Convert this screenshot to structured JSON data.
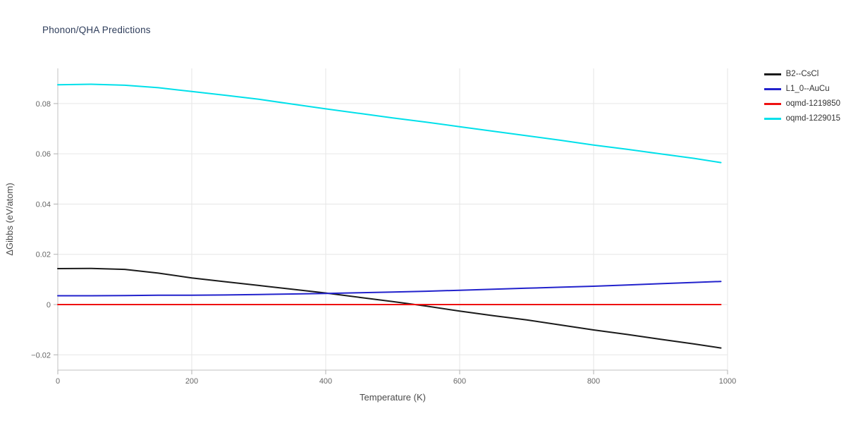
{
  "title": "Phonon/QHA Predictions",
  "chart_data": {
    "type": "line",
    "title": "Phonon/QHA Predictions",
    "xlabel": "Temperature (K)",
    "ylabel": "ΔGibbs (eV/atom)",
    "xlim": [
      0,
      1000
    ],
    "ylim": [
      -0.0261,
      0.094
    ],
    "xticks": [
      0,
      200,
      400,
      600,
      800,
      1000
    ],
    "yticks": [
      -0.02,
      0,
      0.02,
      0.04,
      0.06,
      0.08
    ],
    "grid": true,
    "legend_position": "top-right-outside",
    "x": [
      0,
      50,
      100,
      150,
      200,
      250,
      300,
      350,
      400,
      450,
      500,
      550,
      600,
      650,
      700,
      750,
      800,
      850,
      900,
      950,
      990
    ],
    "series": [
      {
        "name": "B2--CsCl",
        "color": "#1a1a1a",
        "values": [
          0.0143,
          0.0144,
          0.014,
          0.0125,
          0.0106,
          0.0091,
          0.0076,
          0.0061,
          0.0046,
          0.0029,
          0.0012,
          -0.0006,
          -0.0026,
          -0.0044,
          -0.0061,
          -0.0081,
          -0.0101,
          -0.0119,
          -0.0138,
          -0.0157,
          -0.0173
        ]
      },
      {
        "name": "L1_0--AuCu",
        "color": "#2222cc",
        "values": [
          0.0035,
          0.0035,
          0.0036,
          0.0037,
          0.0037,
          0.0038,
          0.004,
          0.0042,
          0.0044,
          0.0047,
          0.005,
          0.0053,
          0.0057,
          0.0061,
          0.0065,
          0.0069,
          0.0073,
          0.0078,
          0.0083,
          0.0088,
          0.0092
        ]
      },
      {
        "name": "oqmd-1219850",
        "color": "#ee1111",
        "values": [
          0,
          0,
          0,
          0,
          0,
          0,
          0,
          0,
          0,
          0,
          0,
          0,
          0,
          0,
          0,
          0,
          0,
          0,
          0,
          0,
          0
        ]
      },
      {
        "name": "oqmd-1229015",
        "color": "#00e0ea",
        "values": [
          0.0875,
          0.0877,
          0.0873,
          0.0863,
          0.0848,
          0.0833,
          0.0817,
          0.0798,
          0.0779,
          0.0761,
          0.0743,
          0.0726,
          0.0708,
          0.069,
          0.0672,
          0.0654,
          0.0635,
          0.0618,
          0.06,
          0.0582,
          0.0565
        ]
      }
    ],
    "colors": {
      "grid": "#e6e6e6",
      "axis": "#c0c0c0",
      "tick": "#b0b0b0",
      "title": "#2d3c5a"
    }
  }
}
